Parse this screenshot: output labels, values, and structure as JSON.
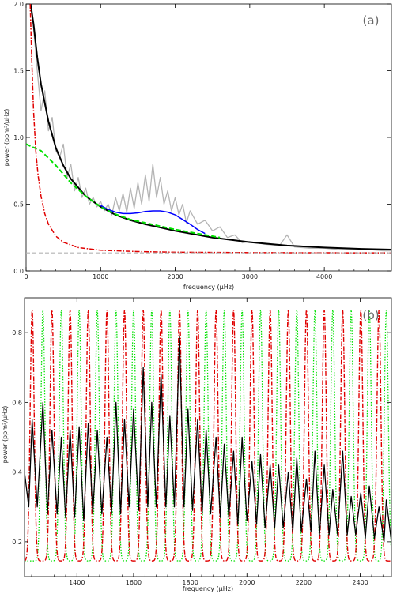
{
  "chart_data": [
    {
      "panel": "(a)",
      "type": "line",
      "xlabel": "frequency (μHz)",
      "ylabel": "power (ppm²/μHz)",
      "xlim": [
        0,
        4900
      ],
      "ylim": [
        0.0,
        2.0
      ],
      "x_ticks": [
        0,
        1000,
        2000,
        3000,
        4000
      ],
      "x_tick_labels": [
        "0",
        "1000",
        "2000",
        "3000",
        "4000"
      ],
      "y_ticks": [
        0.0,
        0.5,
        1.0,
        1.5,
        2.0
      ],
      "y_tick_labels": [
        "0.0",
        "0.5",
        "1.0",
        "1.5",
        "2.0"
      ],
      "series": [
        {
          "style": "data",
          "color": "#b4b4b4",
          "x": [
            80,
            150,
            200,
            250,
            300,
            350,
            400,
            450,
            500,
            550,
            600,
            650,
            700,
            750,
            800,
            850,
            900,
            950,
            1000,
            1050,
            1100,
            1150,
            1200,
            1250,
            1300,
            1350,
            1400,
            1450,
            1500,
            1550,
            1600,
            1650,
            1700,
            1750,
            1800,
            1850,
            1900,
            1950,
            2000,
            2050,
            2100,
            2150,
            2200,
            2300,
            2400,
            2500,
            2600,
            2700,
            2800,
            2900,
            3000,
            3200,
            3400,
            3500,
            3600,
            3800,
            4000,
            4200,
            4400,
            4600,
            4800,
            4900
          ],
          "y": [
            1.95,
            1.5,
            1.2,
            1.35,
            1.05,
            1.15,
            0.9,
            0.85,
            0.95,
            0.7,
            0.8,
            0.6,
            0.7,
            0.55,
            0.62,
            0.5,
            0.55,
            0.48,
            0.52,
            0.45,
            0.5,
            0.42,
            0.55,
            0.45,
            0.58,
            0.44,
            0.62,
            0.47,
            0.66,
            0.5,
            0.72,
            0.52,
            0.8,
            0.55,
            0.7,
            0.5,
            0.6,
            0.45,
            0.55,
            0.42,
            0.5,
            0.36,
            0.45,
            0.35,
            0.38,
            0.3,
            0.33,
            0.25,
            0.27,
            0.21,
            0.22,
            0.2,
            0.19,
            0.27,
            0.18,
            0.17,
            0.17,
            0.16,
            0.16,
            0.16,
            0.15,
            0.15
          ]
        },
        {
          "style": "model-total",
          "color": "#000000",
          "x": [
            60,
            100,
            150,
            200,
            300,
            400,
            500,
            600,
            800,
            1000,
            1200,
            1400,
            1600,
            1800,
            2000,
            2200,
            2500,
            3000,
            3500,
            4000,
            4500,
            4900
          ],
          "y": [
            2.0,
            1.85,
            1.6,
            1.4,
            1.12,
            0.92,
            0.79,
            0.69,
            0.56,
            0.48,
            0.42,
            0.38,
            0.35,
            0.325,
            0.3,
            0.28,
            0.25,
            0.215,
            0.19,
            0.175,
            0.165,
            0.16
          ]
        },
        {
          "style": "model-with-envelope",
          "color": "#0000ff",
          "x": [
            1000,
            1100,
            1200,
            1300,
            1400,
            1500,
            1600,
            1700,
            1800,
            1900,
            2000,
            2100,
            2200,
            2300,
            2400
          ],
          "y": [
            0.49,
            0.46,
            0.44,
            0.43,
            0.43,
            0.435,
            0.445,
            0.45,
            0.45,
            0.44,
            0.42,
            0.385,
            0.35,
            0.31,
            0.28
          ]
        },
        {
          "style": "dashed",
          "color": "#00e000",
          "x": [
            0,
            200,
            400,
            600,
            800,
            1000,
            1200,
            1400,
            1600,
            1800,
            2000,
            2200,
            2400,
            2600
          ],
          "y": [
            0.95,
            0.9,
            0.79,
            0.66,
            0.56,
            0.48,
            0.425,
            0.385,
            0.36,
            0.335,
            0.31,
            0.29,
            0.27,
            0.25
          ]
        },
        {
          "style": "dash-dot",
          "color": "#e00000",
          "x": [
            55,
            75,
            100,
            130,
            160,
            200,
            250,
            300,
            400,
            500,
            700,
            1000,
            1500,
            2000,
            3000,
            4900
          ],
          "y": [
            2.0,
            1.6,
            1.2,
            0.9,
            0.72,
            0.56,
            0.43,
            0.35,
            0.26,
            0.215,
            0.175,
            0.155,
            0.145,
            0.14,
            0.137,
            0.135
          ]
        },
        {
          "style": "dashed-flat",
          "color": "#b4b4b4",
          "x": [
            0,
            4900
          ],
          "y": [
            0.135,
            0.135
          ]
        }
      ]
    },
    {
      "panel": "(b)",
      "type": "line",
      "xlabel": "frequency (μHz)",
      "ylabel": "power (ppm²/μHz)",
      "xlim": [
        1215,
        2510
      ],
      "ylim": [
        0.1,
        0.9
      ],
      "x_ticks": [
        1400,
        1600,
        1800,
        2000,
        2200,
        2400
      ],
      "x_tick_labels": [
        "1400",
        "1600",
        "1800",
        "2000",
        "2200",
        "2400"
      ],
      "y_ticks": [
        0.2,
        0.4,
        0.6,
        0.8
      ],
      "y_tick_labels": [
        "0.2",
        "0.4",
        "0.6",
        "0.8"
      ],
      "modes": {
        "red_peaks": [
          1242,
          1312,
          1376,
          1440,
          1506,
          1568,
          1634,
          1697,
          1762,
          1826,
          1891,
          1953,
          2018,
          2082,
          2146,
          2210,
          2273,
          2338,
          2402,
          2466
        ],
        "green_peaks": [
          1280,
          1345,
          1408,
          1472,
          1538,
          1600,
          1664,
          1728,
          1792,
          1856,
          1920,
          1983,
          2048,
          2112,
          2176,
          2240,
          2303,
          2368,
          2432,
          2492
        ],
        "peak_level": 0.865,
        "base_level": 0.145
      },
      "series": [
        {
          "style": "data",
          "color": "#000000",
          "x": [
            1215,
            1230,
            1242,
            1260,
            1280,
            1296,
            1312,
            1330,
            1345,
            1360,
            1376,
            1392,
            1408,
            1424,
            1440,
            1456,
            1472,
            1488,
            1506,
            1522,
            1538,
            1554,
            1568,
            1584,
            1600,
            1618,
            1634,
            1650,
            1664,
            1680,
            1697,
            1714,
            1728,
            1744,
            1762,
            1778,
            1792,
            1808,
            1826,
            1842,
            1856,
            1872,
            1891,
            1906,
            1920,
            1936,
            1953,
            1968,
            1983,
            2000,
            2018,
            2034,
            2048,
            2064,
            2082,
            2098,
            2112,
            2128,
            2146,
            2162,
            2176,
            2192,
            2210,
            2226,
            2240,
            2256,
            2273,
            2290,
            2303,
            2320,
            2338,
            2354,
            2368,
            2384,
            2402,
            2418,
            2432,
            2450,
            2466,
            2484,
            2492,
            2510
          ],
          "y": [
            0.4,
            0.3,
            0.55,
            0.3,
            0.6,
            0.28,
            0.52,
            0.28,
            0.5,
            0.27,
            0.52,
            0.27,
            0.53,
            0.26,
            0.54,
            0.28,
            0.52,
            0.28,
            0.5,
            0.28,
            0.6,
            0.28,
            0.55,
            0.3,
            0.58,
            0.29,
            0.7,
            0.3,
            0.6,
            0.3,
            0.68,
            0.3,
            0.56,
            0.3,
            0.79,
            0.3,
            0.58,
            0.29,
            0.55,
            0.28,
            0.52,
            0.28,
            0.5,
            0.27,
            0.48,
            0.27,
            0.46,
            0.25,
            0.5,
            0.26,
            0.43,
            0.25,
            0.45,
            0.24,
            0.42,
            0.24,
            0.42,
            0.24,
            0.4,
            0.23,
            0.44,
            0.23,
            0.38,
            0.23,
            0.46,
            0.22,
            0.42,
            0.22,
            0.35,
            0.22,
            0.46,
            0.22,
            0.33,
            0.22,
            0.34,
            0.21,
            0.36,
            0.21,
            0.3,
            0.2,
            0.32,
            0.2
          ]
        }
      ]
    }
  ]
}
